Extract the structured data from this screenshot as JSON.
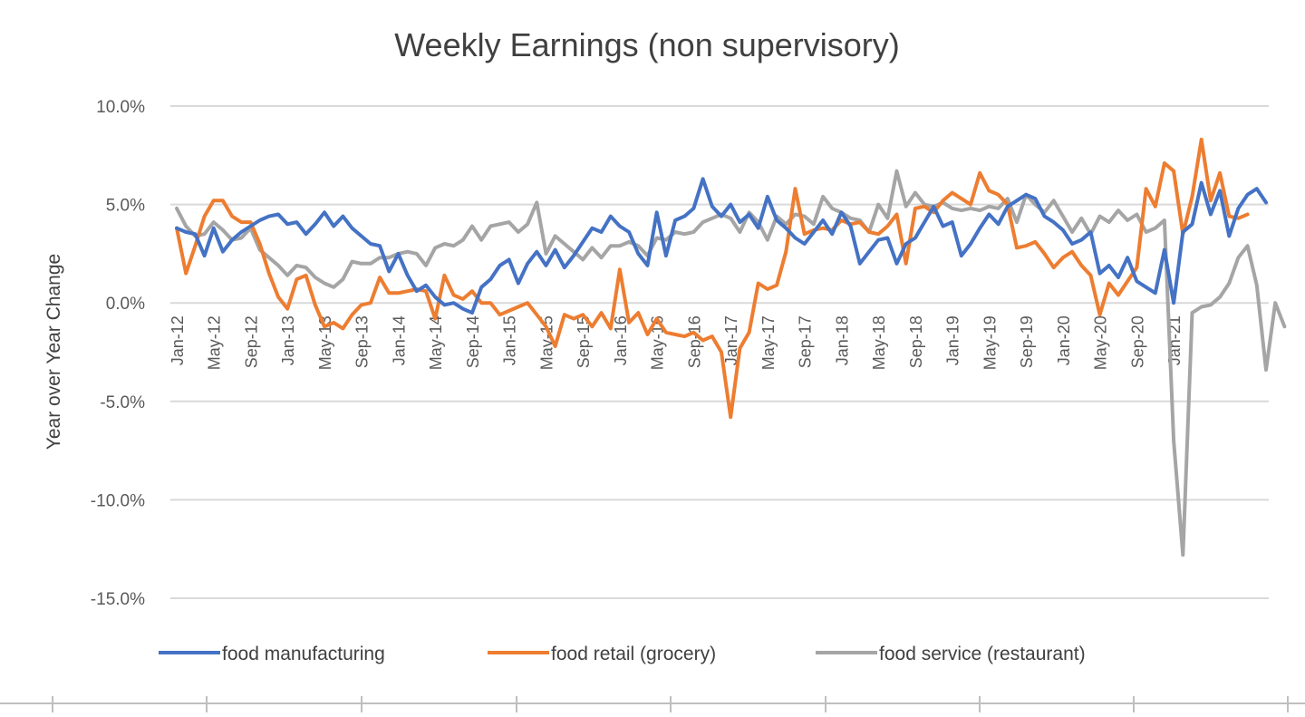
{
  "chart_data": {
    "type": "line",
    "title": "Weekly Earnings (non supervisory)",
    "ylabel": "Year over Year Change",
    "xlabel": "",
    "ylim": [
      -15,
      10
    ],
    "y_ticks": [
      10,
      5,
      0,
      -5,
      -10,
      -15
    ],
    "y_tick_labels": [
      "10.0%",
      "5.0%",
      "0.0%",
      "-5.0%",
      "-10.0%",
      "-15.0%"
    ],
    "x_tick_labels": [
      "Jan-12",
      "May-12",
      "Sep-12",
      "Jan-13",
      "May-13",
      "Sep-13",
      "Jan-14",
      "May-14",
      "Sep-14",
      "Jan-15",
      "May-15",
      "Sep-15",
      "Jan-16",
      "May-16",
      "Sep-16",
      "Jan-17",
      "May-17",
      "Sep-17",
      "Jan-18",
      "May-18",
      "Sep-18",
      "Jan-19",
      "May-19",
      "Sep-19",
      "Jan-20",
      "May-20",
      "Sep-20",
      "Jan-21"
    ],
    "grid": "horizontal",
    "legend_position": "bottom",
    "x_start": "Jan-12",
    "x_end": "Mar-21",
    "series": [
      {
        "name": "food manufacturing",
        "color": "#4472c4",
        "values": [
          3.8,
          3.6,
          3.5,
          2.4,
          3.8,
          2.6,
          3.2,
          3.6,
          3.9,
          4.2,
          4.4,
          4.5,
          4.0,
          4.1,
          3.5,
          4.0,
          4.6,
          3.9,
          4.4,
          3.8,
          3.4,
          3.0,
          2.9,
          1.6,
          2.5,
          1.4,
          0.6,
          0.9,
          0.3,
          -0.1,
          0.0,
          -0.3,
          -0.5,
          0.8,
          1.2,
          1.9,
          2.2,
          1.0,
          2.0,
          2.6,
          1.9,
          2.7,
          1.8,
          2.4,
          3.1,
          3.8,
          3.6,
          4.4,
          3.9,
          3.6,
          2.5,
          1.9,
          4.6,
          2.4,
          4.2,
          4.4,
          4.8,
          6.3,
          4.9,
          4.4,
          5.0,
          4.1,
          4.5,
          3.8,
          5.4,
          4.2,
          3.8,
          3.3,
          3.0,
          3.6,
          4.2,
          3.5,
          4.6,
          3.9,
          2.0,
          2.6,
          3.2,
          3.3,
          2.0,
          3.0,
          3.3,
          4.1,
          4.9,
          3.9,
          4.1,
          2.4,
          3.0,
          3.8,
          4.5,
          4.0,
          4.9,
          5.2,
          5.5,
          5.3,
          4.4,
          4.1,
          3.7,
          3.0,
          3.2,
          3.6,
          1.5,
          1.9,
          1.3,
          2.3,
          1.1,
          0.8,
          0.5,
          2.7,
          0.0,
          3.6,
          4.0,
          6.1,
          4.5,
          5.7,
          3.4,
          4.8,
          5.5,
          5.8,
          5.1
        ]
      },
      {
        "name": "food retail (grocery)",
        "color": "#ed7d31",
        "values": [
          3.8,
          1.5,
          2.9,
          4.4,
          5.2,
          5.2,
          4.4,
          4.1,
          4.1,
          3.0,
          1.5,
          0.3,
          -0.3,
          1.2,
          1.4,
          -0.1,
          -1.2,
          -1.0,
          -1.3,
          -0.6,
          -0.1,
          0.0,
          1.3,
          0.5,
          0.5,
          0.6,
          0.7,
          0.6,
          -0.8,
          1.4,
          0.4,
          0.2,
          0.6,
          0.0,
          0.0,
          -0.6,
          -0.4,
          -0.2,
          0.0,
          -0.6,
          -1.2,
          -2.2,
          -0.6,
          -0.8,
          -0.6,
          -1.2,
          -0.5,
          -1.3,
          1.7,
          -1.0,
          -0.5,
          -1.6,
          -0.8,
          -1.5,
          -1.6,
          -1.7,
          -1.5,
          -1.9,
          -1.7,
          -2.5,
          -5.8,
          -2.3,
          -1.5,
          1.0,
          0.7,
          0.9,
          2.6,
          5.8,
          3.5,
          3.7,
          3.8,
          3.7,
          4.2,
          4.0,
          4.1,
          3.6,
          3.5,
          3.9,
          4.5,
          2.0,
          4.8,
          4.9,
          4.6,
          5.2,
          5.6,
          5.3,
          5.0,
          6.6,
          5.7,
          5.5,
          5.0,
          2.8,
          2.9,
          3.1,
          2.5,
          1.8,
          2.3,
          2.6,
          1.9,
          1.4,
          -0.6,
          1.0,
          0.4,
          1.1,
          1.8,
          5.8,
          4.9,
          7.1,
          6.7,
          3.5,
          5.4,
          8.3,
          5.2,
          6.6,
          4.4,
          4.3,
          4.5
        ]
      },
      {
        "name": "food service (restaurant)",
        "color": "#a5a5a5",
        "values": [
          4.8,
          3.9,
          3.4,
          3.5,
          4.1,
          3.7,
          3.2,
          3.3,
          3.8,
          2.7,
          2.3,
          1.9,
          1.4,
          1.9,
          1.8,
          1.3,
          1.0,
          0.8,
          1.2,
          2.1,
          2.0,
          2.0,
          2.3,
          2.3,
          2.5,
          2.6,
          2.5,
          1.9,
          2.8,
          3.0,
          2.9,
          3.2,
          3.9,
          3.2,
          3.9,
          4.0,
          4.1,
          3.6,
          4.0,
          5.1,
          2.5,
          3.4,
          3.0,
          2.6,
          2.2,
          2.8,
          2.3,
          2.9,
          2.9,
          3.1,
          2.9,
          2.4,
          3.3,
          3.2,
          3.6,
          3.5,
          3.6,
          4.1,
          4.3,
          4.5,
          4.3,
          3.6,
          4.6,
          4.1,
          3.2,
          4.4,
          4.0,
          4.5,
          4.4,
          4.0,
          5.4,
          4.8,
          4.6,
          4.3,
          4.2,
          3.6,
          5.0,
          4.3,
          6.7,
          4.9,
          5.6,
          5.0,
          4.9,
          5.1,
          4.8,
          4.7,
          4.8,
          4.7,
          4.9,
          4.8,
          5.3,
          4.1,
          5.5,
          5.0,
          4.6,
          5.2,
          4.4,
          3.6,
          4.3,
          3.5,
          4.4,
          4.1,
          4.7,
          4.2,
          4.5,
          3.6,
          3.8,
          4.2,
          -7.0,
          -12.8,
          -0.5,
          -0.2,
          -0.1,
          0.3,
          1.0,
          2.3,
          2.9,
          0.9,
          -3.4,
          0.0,
          -1.2
        ]
      }
    ]
  },
  "colors": {
    "grid": "#d9d9d9",
    "text": "#595959",
    "axis": "#bfbfbf"
  }
}
